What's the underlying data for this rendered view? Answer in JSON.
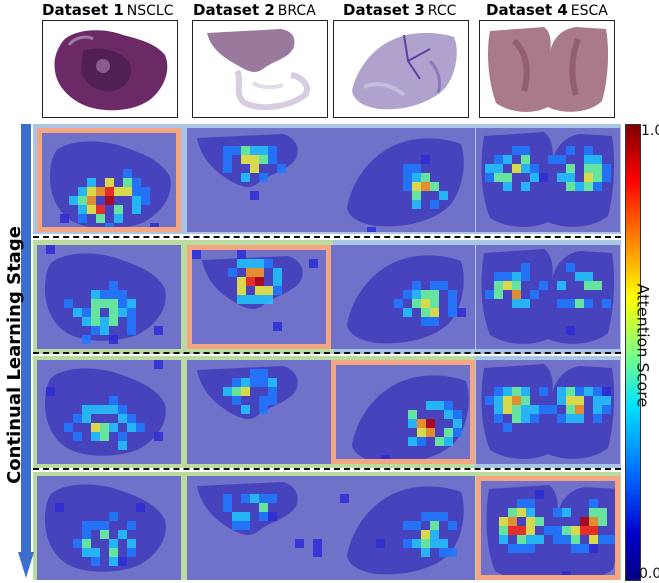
{
  "columns": [
    {
      "title": "Dataset 1",
      "subtitle": "NSCLC"
    },
    {
      "title": "Dataset 2",
      "subtitle": "BRCA"
    },
    {
      "title": "Dataset 3",
      "subtitle": "RCC"
    },
    {
      "title": "Dataset 4",
      "subtitle": "ESCA"
    }
  ],
  "y_axis_label": "Continual Learning Stage",
  "colorbar": {
    "label": "Attention Score",
    "max": "1.0",
    "min": "0.0"
  },
  "stage_colors": [
    "#a9c6e6",
    "#b9dba0",
    "#b9dba0",
    "#b9dba0"
  ],
  "highlight_color": "#f4a582"
}
